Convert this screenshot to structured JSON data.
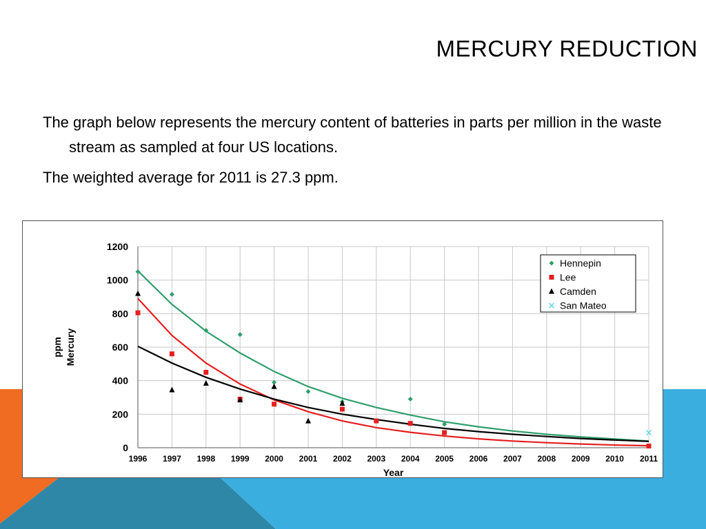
{
  "slide": {
    "title": "MERCURY REDUCTION",
    "paragraphs": [
      "The graph below represents the mercury content of batteries in parts per million in the waste stream as sampled at four US locations.",
      "The weighted average for 2011 is 27.3 ppm."
    ]
  },
  "colors": {
    "decor_orange": "#ef6c22",
    "decor_light_blue": "#3aaede",
    "decor_dark_blue": "#2f87a8",
    "hennepin": "#2e9e6b",
    "lee": "#e51e1e",
    "camden": "#000000",
    "san_mateo": "#5fd3e8"
  },
  "chart_data": {
    "type": "scatter",
    "xlabel": "Year",
    "ylabel_lines": [
      "ppm",
      "Mercury"
    ],
    "x_ticks": [
      "1996",
      "1997",
      "1998",
      "1999",
      "2000",
      "2001",
      "2002",
      "2003",
      "2004",
      "2005",
      "2006",
      "2007",
      "2008",
      "2009",
      "2010",
      "2011"
    ],
    "y_ticks": [
      0,
      200,
      400,
      600,
      800,
      1000,
      1200
    ],
    "xlim": [
      1996,
      2011
    ],
    "ylim": [
      0,
      1200
    ],
    "grid": true,
    "legend_position": "top-right",
    "series": [
      {
        "name": "Hennepin",
        "marker": "diamond",
        "points": [
          [
            1996,
            1050
          ],
          [
            1997,
            915
          ],
          [
            1998,
            700
          ],
          [
            1999,
            675
          ],
          [
            2000,
            390
          ],
          [
            2001,
            335
          ],
          [
            2002,
            275
          ],
          [
            2004,
            290
          ],
          [
            2005,
            140
          ]
        ],
        "trend": [
          [
            1996,
            1055
          ],
          [
            1997,
            855
          ],
          [
            1998,
            695
          ],
          [
            1999,
            565
          ],
          [
            2000,
            455
          ],
          [
            2001,
            365
          ],
          [
            2002,
            295
          ],
          [
            2003,
            240
          ],
          [
            2004,
            195
          ],
          [
            2005,
            155
          ],
          [
            2006,
            125
          ],
          [
            2007,
            100
          ],
          [
            2008,
            80
          ],
          [
            2009,
            65
          ],
          [
            2010,
            52
          ],
          [
            2011,
            40
          ]
        ]
      },
      {
        "name": "Lee",
        "marker": "square",
        "points": [
          [
            1996,
            805
          ],
          [
            1997,
            560
          ],
          [
            1998,
            450
          ],
          [
            1999,
            290
          ],
          [
            2000,
            260
          ],
          [
            2002,
            230
          ],
          [
            2003,
            160
          ],
          [
            2004,
            145
          ],
          [
            2005,
            90
          ],
          [
            2011,
            10
          ]
        ],
        "trend": [
          [
            1996,
            890
          ],
          [
            1997,
            670
          ],
          [
            1998,
            505
          ],
          [
            1999,
            380
          ],
          [
            2000,
            285
          ],
          [
            2001,
            215
          ],
          [
            2002,
            160
          ],
          [
            2003,
            120
          ],
          [
            2004,
            92
          ],
          [
            2005,
            70
          ],
          [
            2006,
            53
          ],
          [
            2007,
            40
          ],
          [
            2008,
            30
          ],
          [
            2009,
            22
          ],
          [
            2010,
            16
          ],
          [
            2011,
            12
          ]
        ]
      },
      {
        "name": "Camden",
        "marker": "triangle",
        "points": [
          [
            1996,
            920
          ],
          [
            1997,
            345
          ],
          [
            1998,
            385
          ],
          [
            1999,
            285
          ],
          [
            2000,
            365
          ],
          [
            2001,
            160
          ],
          [
            2002,
            265
          ]
        ],
        "trend": [
          [
            1996,
            605
          ],
          [
            1997,
            505
          ],
          [
            1998,
            420
          ],
          [
            1999,
            350
          ],
          [
            2000,
            290
          ],
          [
            2001,
            240
          ],
          [
            2002,
            200
          ],
          [
            2003,
            168
          ],
          [
            2004,
            140
          ],
          [
            2005,
            115
          ],
          [
            2006,
            96
          ],
          [
            2007,
            80
          ],
          [
            2008,
            67
          ],
          [
            2009,
            55
          ],
          [
            2010,
            46
          ],
          [
            2011,
            38
          ]
        ]
      },
      {
        "name": "San Mateo",
        "marker": "x",
        "points": [
          [
            2011,
            90
          ]
        ],
        "trend": []
      }
    ]
  }
}
